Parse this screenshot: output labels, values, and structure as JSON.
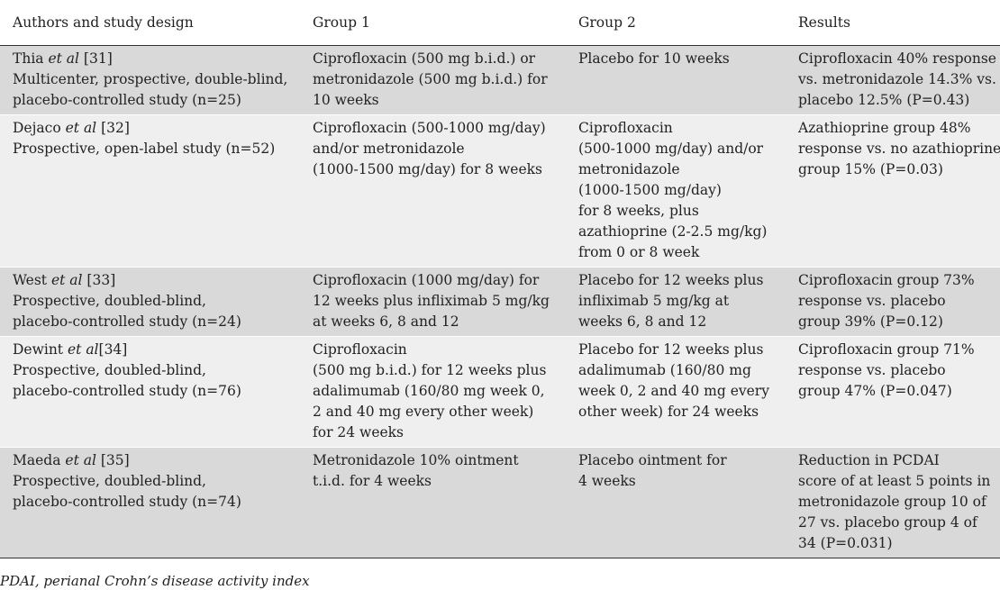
{
  "table": {
    "headers": [
      "Authors and study design",
      "Group 1",
      "Group 2",
      "Results"
    ],
    "rows": [
      {
        "author_name": "Thia",
        "author_etal": "et al",
        "author_ref": " [31]",
        "design": [
          "Multicenter, prospective, double-blind,",
          "placebo-controlled study (n=25)"
        ],
        "group1": [
          "Ciprofloxacin (500 mg b.i.d.) or",
          "metronidazole (500 mg b.i.d.) for",
          "10 weeks"
        ],
        "group2": [
          "Placebo for 10 weeks"
        ],
        "results": [
          "Ciprofloxacin 40% response",
          "vs. metronidazole 14.3% vs.",
          "placebo 12.5% (P=0.43)"
        ]
      },
      {
        "author_name": "Dejaco",
        "author_etal": "et al",
        "author_ref": " [32]",
        "design": [
          "Prospective, open-label study (n=52)"
        ],
        "group1": [
          "Ciprofloxacin (500-1000 mg/day)",
          "and/or metronidazole",
          "(1000-1500 mg/day) for 8 weeks"
        ],
        "group2": [
          "Ciprofloxacin",
          "(500-1000 mg/day) and/or",
          "metronidazole",
          "(1000-1500 mg/day)",
          "for 8 weeks, plus",
          "azathioprine (2-2.5 mg/kg)",
          "from 0 or 8 week"
        ],
        "results": [
          "Azathioprine group 48%",
          "response vs. no azathioprine",
          "group 15% (P=0.03)"
        ]
      },
      {
        "author_name": "West",
        "author_etal": "et al",
        "author_ref": " [33]",
        "design": [
          "Prospective, doubled-blind,",
          "placebo-controlled study (n=24)"
        ],
        "group1": [
          "Ciprofloxacin (1000 mg/day) for",
          "12 weeks plus infliximab 5 mg/kg",
          "at weeks 6, 8 and 12"
        ],
        "group2": [
          "Placebo for 12 weeks plus",
          "infliximab 5 mg/kg at",
          "weeks 6, 8 and 12"
        ],
        "results": [
          "Ciprofloxacin group 73%",
          "response vs. placebo",
          "group 39% (P=0.12)"
        ]
      },
      {
        "author_name": "Dewint",
        "author_etal": "et al",
        "author_ref": "[34]",
        "design": [
          "Prospective, doubled-blind,",
          "placebo-controlled study (n=76)"
        ],
        "group1": [
          "Ciprofloxacin",
          "(500 mg b.i.d.) for 12 weeks plus",
          "adalimumab (160/80 mg week 0,",
          "2 and 40 mg every other week)",
          "for 24 weeks"
        ],
        "group2": [
          "Placebo for 12 weeks plus",
          "adalimumab (160/80 mg",
          "week 0, 2 and 40 mg every",
          "other week) for 24 weeks"
        ],
        "results": [
          "Ciprofloxacin group 71%",
          "response vs. placebo",
          "group 47% (P=0.047)"
        ]
      },
      {
        "author_name": "Maeda",
        "author_etal": "et al",
        "author_ref": " [35]",
        "design": [
          "Prospective, doubled-blind,",
          "placebo-controlled study (n=74)"
        ],
        "group1": [
          "Metronidazole 10% ointment",
          "t.i.d. for 4 weeks"
        ],
        "group2": [
          "Placebo ointment for",
          "4 weeks"
        ],
        "results": [
          "Reduction in PCDAI",
          "score of at least 5 points in",
          "metronidazole group 10 of",
          "27 vs. placebo group 4 of",
          "34 (P=0.031)"
        ]
      }
    ],
    "footnote": "PDAI, perianal Crohn’s disease activity index"
  },
  "colors": {
    "row_dark": "#d9d9d9",
    "row_light": "#efefef",
    "rule": "#333333",
    "text": "#222222"
  }
}
